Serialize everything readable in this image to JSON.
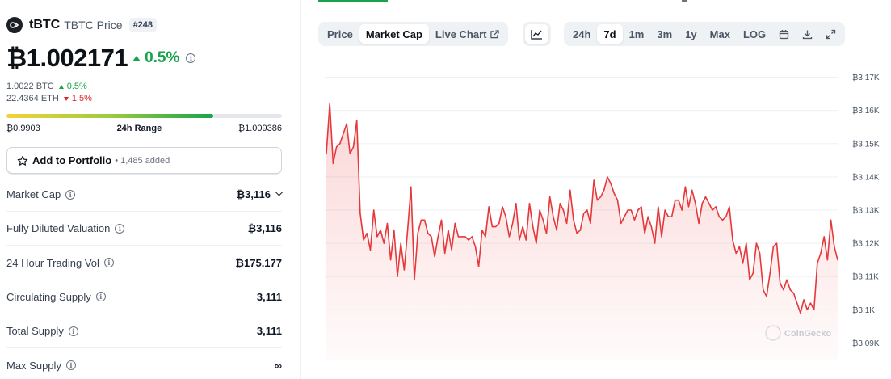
{
  "coin": {
    "symbol": "tBTC",
    "name": "TBTC Price",
    "rank": "#248",
    "price": "₿1.002171",
    "change_24h": "0.5%",
    "btc_price": "1.0022 BTC",
    "btc_change": "0.5%",
    "eth_price": "22.4364 ETH",
    "eth_change": "1.5%"
  },
  "range": {
    "low": "₿0.9903",
    "label": "24h Range",
    "high": "₿1.009386",
    "fill_fraction": 0.75
  },
  "portfolio": {
    "label": "Add to Portfolio",
    "added": "• 1,485 added"
  },
  "stats": [
    {
      "label": "Market Cap",
      "value": "₿3,116",
      "dropdown": true
    },
    {
      "label": "Fully Diluted Valuation",
      "value": "₿3,116",
      "dropdown": false
    },
    {
      "label": "24 Hour Trading Vol",
      "value": "₿175.177",
      "dropdown": false
    },
    {
      "label": "Circulating Supply",
      "value": "3,111",
      "dropdown": false
    },
    {
      "label": "Total Supply",
      "value": "3,111",
      "dropdown": false
    },
    {
      "label": "Max Supply",
      "value": "∞",
      "dropdown": false
    }
  ],
  "tabs": {
    "chart_types": [
      "Price",
      "Market Cap",
      "Live Chart"
    ],
    "active_chart_type": "Market Cap",
    "ranges": [
      "24h",
      "7d",
      "1m",
      "3m",
      "1y",
      "Max",
      "LOG"
    ],
    "active_range": "7d"
  },
  "colors": {
    "up": "#16a34a",
    "down": "#dc2626",
    "line": "#e5383b"
  },
  "watermark": "CoinGecko",
  "chart_data": {
    "type": "area",
    "title": "",
    "xlabel": "",
    "ylabel": "",
    "ylim": [
      3085,
      3175
    ],
    "y_ticks": [
      3090,
      3100,
      3110,
      3120,
      3130,
      3140,
      3150,
      3160,
      3170
    ],
    "y_tick_labels": [
      "₿3.09K",
      "₿3.1K",
      "₿3.11K",
      "₿3.12K",
      "₿3.13K",
      "₿3.14K",
      "₿3.15K",
      "₿3.16K",
      "₿3.17K"
    ],
    "grid": true,
    "series": [
      {
        "values": [
          3147,
          3162,
          3144,
          3149,
          3150,
          3153,
          3156,
          3147,
          3149,
          3157,
          3129,
          3121,
          3123,
          3118,
          3130,
          3122,
          3124,
          3120,
          3126,
          3115,
          3124,
          3110,
          3120,
          3112,
          3124,
          3137,
          3109,
          3123,
          3127,
          3127,
          3123,
          3122,
          3116,
          3122,
          3127,
          3117,
          3124,
          3118,
          3126,
          3122,
          3122,
          3122,
          3121,
          3122,
          3119,
          3113,
          3124,
          3122,
          3131,
          3125,
          3125,
          3126,
          3131,
          3128,
          3122,
          3126,
          3132,
          3121,
          3125,
          3121,
          3132,
          3125,
          3120,
          3130,
          3127,
          3123,
          3134,
          3128,
          3124,
          3132,
          3130,
          3126,
          3136,
          3127,
          3123,
          3124,
          3129,
          3130,
          3126,
          3139,
          3133,
          3134,
          3136,
          3140,
          3138,
          3135,
          3133,
          3126,
          3128,
          3130,
          3130,
          3127,
          3130,
          3131,
          3123,
          3128,
          3125,
          3120,
          3131,
          3122,
          3130,
          3128,
          3128,
          3133,
          3133,
          3130,
          3137,
          3131,
          3136,
          3132,
          3126,
          3132,
          3134,
          3132,
          3130,
          3131,
          3128,
          3127,
          3128,
          3131,
          3121,
          3117,
          3119,
          3114,
          3120,
          3109,
          3111,
          3120,
          3117,
          3106,
          3104,
          3111,
          3119,
          3120,
          3108,
          3106,
          3109,
          3106,
          3105,
          3102,
          3099,
          3103,
          3100,
          3102,
          3100,
          3114,
          3117,
          3122,
          3115,
          3127,
          3119,
          3115
        ]
      }
    ]
  }
}
